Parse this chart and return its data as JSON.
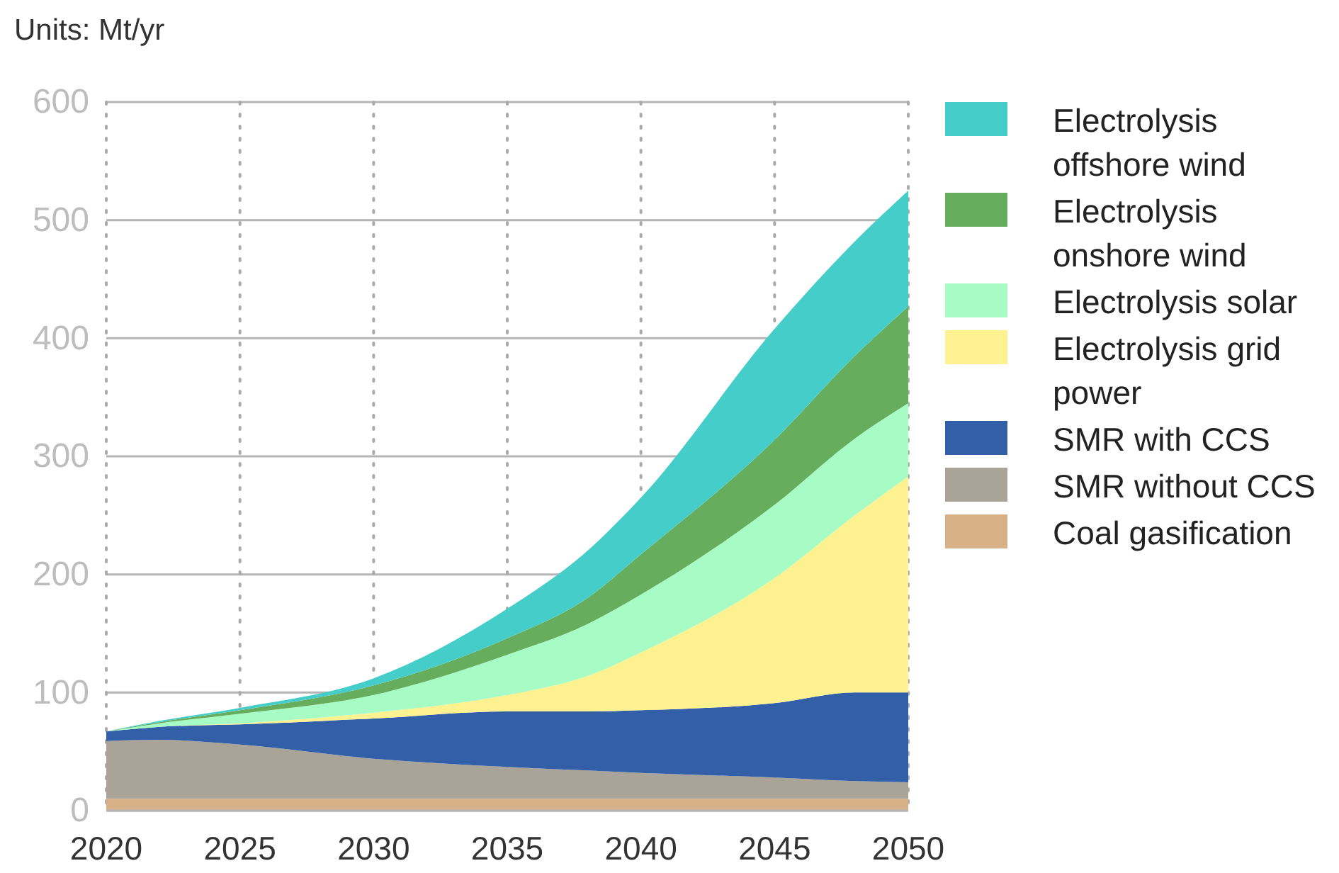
{
  "chart_data": {
    "type": "area",
    "stacked": true,
    "ylabel": "Units: Mt/yr",
    "x": [
      2020,
      2022,
      2025,
      2030,
      2035,
      2038,
      2040,
      2045,
      2048,
      2050
    ],
    "xlim": [
      2020,
      2050
    ],
    "xticks": [
      2020,
      2025,
      2030,
      2035,
      2040,
      2045,
      2050
    ],
    "ylim": [
      0,
      600
    ],
    "yticks": [
      0,
      100,
      200,
      300,
      400,
      500,
      600
    ],
    "grid": true,
    "legend": "right",
    "series": [
      {
        "name": "Coal gasification",
        "color": "#d9b188",
        "values": [
          10,
          10,
          10,
          10,
          10,
          10,
          10,
          10,
          10,
          10
        ]
      },
      {
        "name": "SMR without CCS",
        "color": "#aaa398",
        "values": [
          49,
          50,
          46,
          34,
          27,
          24,
          22,
          18,
          15,
          14
        ]
      },
      {
        "name": "SMR with CCS",
        "color": "#335ea8",
        "values": [
          8,
          11,
          17,
          34,
          47,
          50,
          53,
          63,
          75,
          76
        ]
      },
      {
        "name": "Electrolysis grid power",
        "color": "#fdf190",
        "values": [
          0,
          0,
          1,
          5,
          14,
          30,
          49,
          106,
          150,
          183
        ]
      },
      {
        "name": "Electrolysis solar",
        "color": "#a6fcc4",
        "values": [
          0,
          3,
          8,
          15,
          34,
          44,
          49,
          62,
          65,
          62
        ]
      },
      {
        "name": "Electrolysis onshore wind",
        "color": "#66ae5e",
        "values": [
          0,
          1,
          3,
          8,
          14,
          22,
          34,
          55,
          70,
          82
        ]
      },
      {
        "name": "Electrolysis offshore wind",
        "color": "#45cdc9",
        "values": [
          0,
          1,
          2,
          6,
          25,
          40,
          48,
          94,
          97,
          98
        ]
      }
    ]
  }
}
